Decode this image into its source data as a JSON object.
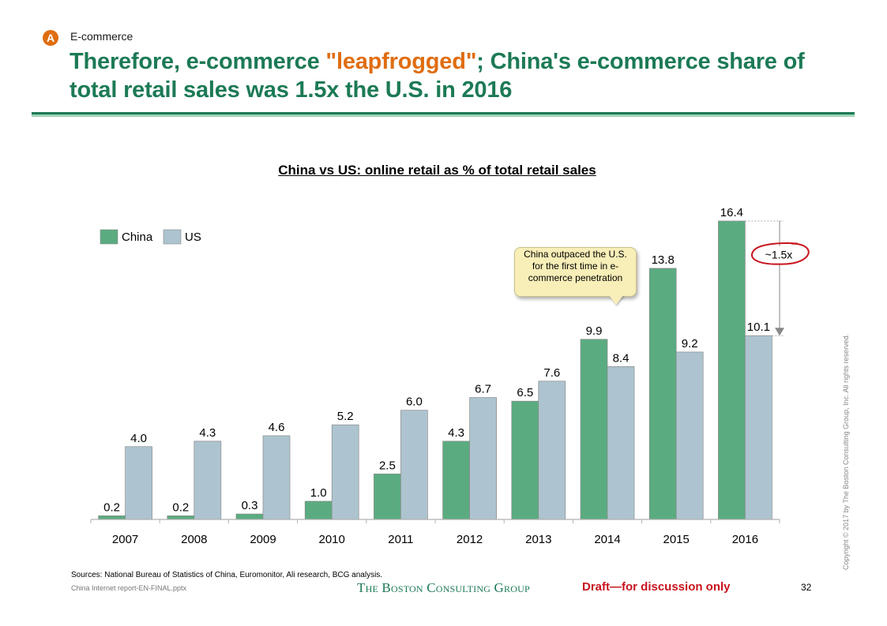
{
  "header": {
    "badge": "A",
    "section": "E-commerce",
    "title_part1": "Therefore, e-commerce ",
    "title_highlight": "\"leapfrogged\"",
    "title_part2": "; China's e-commerce share of total retail sales was 1.5x the U.S. in 2016"
  },
  "colors": {
    "brand_green": "#1c7a55",
    "highlight_orange": "#e06d10",
    "china": "#5aac80",
    "us": "#adc4d0",
    "annotation_red": "#c8141e"
  },
  "chart_data": {
    "type": "bar",
    "title": "China vs US: online retail as % of total retail sales",
    "xlabel": "",
    "ylabel": "",
    "categories": [
      "2007",
      "2008",
      "2009",
      "2010",
      "2011",
      "2012",
      "2013",
      "2014",
      "2015",
      "2016"
    ],
    "series": [
      {
        "name": "China",
        "color": "#5aac80",
        "values": [
          0.2,
          0.2,
          0.3,
          1.0,
          2.5,
          4.3,
          6.5,
          9.9,
          13.8,
          16.4
        ]
      },
      {
        "name": "US",
        "color": "#adc4d0",
        "values": [
          4.0,
          4.3,
          4.6,
          5.2,
          6.0,
          6.7,
          7.6,
          8.4,
          9.2,
          10.1
        ]
      }
    ],
    "ylim": [
      0,
      16.4
    ],
    "grid": false,
    "legend": {
      "placement": "top-left",
      "entries": [
        "China",
        "US"
      ]
    },
    "annotations": {
      "callout": "China outpaced the U.S. for the first time in e-commerce penetration",
      "callout_year": "2014",
      "ratio_label": "~1.5x",
      "ratio_between": [
        "China 2016",
        "US 2016"
      ]
    }
  },
  "footer": {
    "sources": "Sources: National Bureau of Statistics of China, Euromonitor, Ali research, BCG analysis.",
    "file": "China Internet report-EN-FINAL.pptx",
    "logo": "The Boston Consulting Group",
    "draft": "Draft—for discussion only",
    "page": "32",
    "copyright": "Copyright © 2017 by The Boston Consulting Group, Inc. All rights reserved."
  }
}
